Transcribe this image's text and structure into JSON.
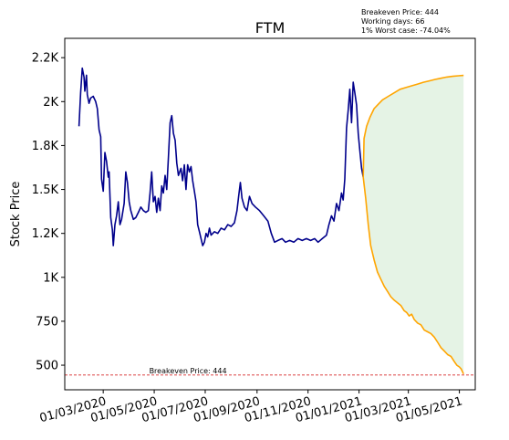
{
  "chart_data": {
    "type": "line",
    "title": "FTM",
    "ylabel": "Stock Price",
    "xlabel": "",
    "ylim": [
      360,
      2360
    ],
    "xlim": [
      "2020-01-15",
      "2021-05-20"
    ],
    "y_ticks": [
      500,
      750,
      1000,
      1250,
      1500,
      1750,
      2000,
      2250
    ],
    "y_tick_labels": [
      "500",
      "750",
      "1K",
      "1.2K",
      "1.5K",
      "1.8K",
      "2K",
      "2.2K"
    ],
    "x_ticks": [
      "2020-03-01",
      "2020-05-01",
      "2020-07-01",
      "2020-09-01",
      "2020-11-01",
      "2021-01-01",
      "2021-03-01",
      "2021-05-01"
    ],
    "x_tick_labels": [
      "01/03/2020",
      "01/05/2020",
      "01/07/2020",
      "01/09/2020",
      "01/11/2020",
      "01/01/2021",
      "01/03/2021",
      "01/05/2021"
    ],
    "info_lines": [
      "Breakeven Price: 444",
      "Working days: 66",
      "1% Worst case: -74.04%"
    ],
    "breakeven": {
      "value": 444,
      "label": "Breakeven Price: 444",
      "color": "#d62728"
    },
    "series": [
      {
        "color": "#00008b",
        "points": [
          [
            "2020-02-01",
            1860
          ],
          [
            "2020-02-03",
            2050
          ],
          [
            "2020-02-05",
            2190
          ],
          [
            "2020-02-07",
            2140
          ],
          [
            "2020-02-08",
            2060
          ],
          [
            "2020-02-10",
            2150
          ],
          [
            "2020-02-11",
            2040
          ],
          [
            "2020-02-13",
            1990
          ],
          [
            "2020-02-15",
            2020
          ],
          [
            "2020-02-18",
            2030
          ],
          [
            "2020-02-21",
            2000
          ],
          [
            "2020-02-23",
            1960
          ],
          [
            "2020-02-25",
            1840
          ],
          [
            "2020-02-27",
            1800
          ],
          [
            "2020-02-28",
            1560
          ],
          [
            "2020-03-01",
            1490
          ],
          [
            "2020-03-03",
            1710
          ],
          [
            "2020-03-05",
            1660
          ],
          [
            "2020-03-07",
            1570
          ],
          [
            "2020-03-08",
            1600
          ],
          [
            "2020-03-10",
            1340
          ],
          [
            "2020-03-12",
            1270
          ],
          [
            "2020-03-13",
            1180
          ],
          [
            "2020-03-15",
            1300
          ],
          [
            "2020-03-17",
            1350
          ],
          [
            "2020-03-19",
            1430
          ],
          [
            "2020-03-21",
            1300
          ],
          [
            "2020-03-23",
            1330
          ],
          [
            "2020-03-26",
            1420
          ],
          [
            "2020-03-28",
            1600
          ],
          [
            "2020-03-30",
            1540
          ],
          [
            "2020-04-01",
            1430
          ],
          [
            "2020-04-03",
            1380
          ],
          [
            "2020-04-06",
            1330
          ],
          [
            "2020-04-09",
            1340
          ],
          [
            "2020-04-12",
            1370
          ],
          [
            "2020-04-15",
            1400
          ],
          [
            "2020-04-18",
            1380
          ],
          [
            "2020-04-21",
            1370
          ],
          [
            "2020-04-24",
            1380
          ],
          [
            "2020-04-26",
            1480
          ],
          [
            "2020-04-28",
            1600
          ],
          [
            "2020-04-30",
            1430
          ],
          [
            "2020-05-02",
            1460
          ],
          [
            "2020-05-04",
            1370
          ],
          [
            "2020-05-06",
            1450
          ],
          [
            "2020-05-08",
            1380
          ],
          [
            "2020-05-10",
            1520
          ],
          [
            "2020-05-12",
            1480
          ],
          [
            "2020-05-14",
            1580
          ],
          [
            "2020-05-16",
            1500
          ],
          [
            "2020-05-18",
            1680
          ],
          [
            "2020-05-20",
            1880
          ],
          [
            "2020-05-22",
            1920
          ],
          [
            "2020-05-24",
            1820
          ],
          [
            "2020-05-26",
            1780
          ],
          [
            "2020-05-28",
            1650
          ],
          [
            "2020-05-30",
            1580
          ],
          [
            "2020-06-02",
            1620
          ],
          [
            "2020-06-04",
            1550
          ],
          [
            "2020-06-06",
            1640
          ],
          [
            "2020-06-08",
            1500
          ],
          [
            "2020-06-10",
            1640
          ],
          [
            "2020-06-12",
            1600
          ],
          [
            "2020-06-14",
            1630
          ],
          [
            "2020-06-16",
            1550
          ],
          [
            "2020-06-18",
            1490
          ],
          [
            "2020-06-20",
            1430
          ],
          [
            "2020-06-22",
            1300
          ],
          [
            "2020-06-24",
            1260
          ],
          [
            "2020-06-26",
            1220
          ],
          [
            "2020-06-28",
            1180
          ],
          [
            "2020-06-30",
            1200
          ],
          [
            "2020-07-02",
            1250
          ],
          [
            "2020-07-04",
            1230
          ],
          [
            "2020-07-06",
            1280
          ],
          [
            "2020-07-08",
            1240
          ],
          [
            "2020-07-12",
            1260
          ],
          [
            "2020-07-16",
            1250
          ],
          [
            "2020-07-20",
            1280
          ],
          [
            "2020-07-24",
            1270
          ],
          [
            "2020-07-28",
            1300
          ],
          [
            "2020-08-01",
            1290
          ],
          [
            "2020-08-05",
            1310
          ],
          [
            "2020-08-08",
            1380
          ],
          [
            "2020-08-10",
            1460
          ],
          [
            "2020-08-12",
            1540
          ],
          [
            "2020-08-14",
            1450
          ],
          [
            "2020-08-17",
            1400
          ],
          [
            "2020-08-20",
            1380
          ],
          [
            "2020-08-23",
            1460
          ],
          [
            "2020-08-26",
            1420
          ],
          [
            "2020-08-30",
            1400
          ],
          [
            "2020-09-04",
            1380
          ],
          [
            "2020-09-09",
            1350
          ],
          [
            "2020-09-14",
            1320
          ],
          [
            "2020-09-18",
            1250
          ],
          [
            "2020-09-22",
            1200
          ],
          [
            "2020-09-26",
            1210
          ],
          [
            "2020-10-01",
            1220
          ],
          [
            "2020-10-05",
            1200
          ],
          [
            "2020-10-10",
            1210
          ],
          [
            "2020-10-15",
            1200
          ],
          [
            "2020-10-20",
            1220
          ],
          [
            "2020-10-25",
            1210
          ],
          [
            "2020-10-30",
            1220
          ],
          [
            "2020-11-04",
            1210
          ],
          [
            "2020-11-09",
            1220
          ],
          [
            "2020-11-13",
            1200
          ],
          [
            "2020-11-18",
            1220
          ],
          [
            "2020-11-23",
            1240
          ],
          [
            "2020-11-26",
            1300
          ],
          [
            "2020-11-29",
            1350
          ],
          [
            "2020-12-02",
            1320
          ],
          [
            "2020-12-05",
            1420
          ],
          [
            "2020-12-08",
            1380
          ],
          [
            "2020-12-11",
            1480
          ],
          [
            "2020-12-13",
            1440
          ],
          [
            "2020-12-15",
            1560
          ],
          [
            "2020-12-17",
            1850
          ],
          [
            "2020-12-19",
            1950
          ],
          [
            "2020-12-21",
            2070
          ],
          [
            "2020-12-23",
            1880
          ],
          [
            "2020-12-25",
            2110
          ],
          [
            "2020-12-27",
            2050
          ],
          [
            "2020-12-29",
            1980
          ],
          [
            "2020-12-31",
            1820
          ],
          [
            "2021-01-02",
            1720
          ],
          [
            "2021-01-04",
            1620
          ],
          [
            "2021-01-06",
            1570
          ]
        ]
      },
      {
        "color": "#ffa500",
        "points": [
          [
            "2021-01-06",
            1570
          ],
          [
            "2021-01-07",
            1790
          ],
          [
            "2021-01-10",
            1860
          ],
          [
            "2021-01-14",
            1910
          ],
          [
            "2021-01-19",
            1960
          ],
          [
            "2021-01-24",
            1985
          ],
          [
            "2021-01-29",
            2010
          ],
          [
            "2021-02-05",
            2030
          ],
          [
            "2021-02-12",
            2050
          ],
          [
            "2021-02-19",
            2070
          ],
          [
            "2021-02-26",
            2080
          ],
          [
            "2021-03-05",
            2090
          ],
          [
            "2021-03-12",
            2100
          ],
          [
            "2021-03-19",
            2110
          ],
          [
            "2021-03-26",
            2118
          ],
          [
            "2021-04-02",
            2126
          ],
          [
            "2021-04-09",
            2133
          ],
          [
            "2021-04-16",
            2140
          ],
          [
            "2021-04-23",
            2144
          ],
          [
            "2021-04-30",
            2147
          ],
          [
            "2021-05-06",
            2149
          ]
        ]
      },
      {
        "color": "#ffa500",
        "points": [
          [
            "2021-01-06",
            1570
          ],
          [
            "2021-01-09",
            1450
          ],
          [
            "2021-01-12",
            1300
          ],
          [
            "2021-01-15",
            1180
          ],
          [
            "2021-01-19",
            1100
          ],
          [
            "2021-01-23",
            1030
          ],
          [
            "2021-01-27",
            990
          ],
          [
            "2021-01-31",
            950
          ],
          [
            "2021-02-04",
            920
          ],
          [
            "2021-02-08",
            890
          ],
          [
            "2021-02-12",
            870
          ],
          [
            "2021-02-16",
            855
          ],
          [
            "2021-02-20",
            840
          ],
          [
            "2021-02-24",
            810
          ],
          [
            "2021-02-27",
            800
          ],
          [
            "2021-03-02",
            780
          ],
          [
            "2021-03-05",
            790
          ],
          [
            "2021-03-08",
            760
          ],
          [
            "2021-03-12",
            740
          ],
          [
            "2021-03-16",
            730
          ],
          [
            "2021-03-20",
            700
          ],
          [
            "2021-03-24",
            690
          ],
          [
            "2021-03-28",
            680
          ],
          [
            "2021-04-01",
            660
          ],
          [
            "2021-04-05",
            630
          ],
          [
            "2021-04-09",
            600
          ],
          [
            "2021-04-13",
            580
          ],
          [
            "2021-04-17",
            560
          ],
          [
            "2021-04-21",
            550
          ],
          [
            "2021-04-25",
            520
          ],
          [
            "2021-04-28",
            500
          ],
          [
            "2021-05-01",
            490
          ],
          [
            "2021-05-03",
            480
          ],
          [
            "2021-05-05",
            460
          ],
          [
            "2021-05-06",
            450
          ]
        ]
      }
    ],
    "band": {
      "color": "#2ca02c",
      "opacity": 0.12
    },
    "grid": false,
    "legend": "none"
  }
}
